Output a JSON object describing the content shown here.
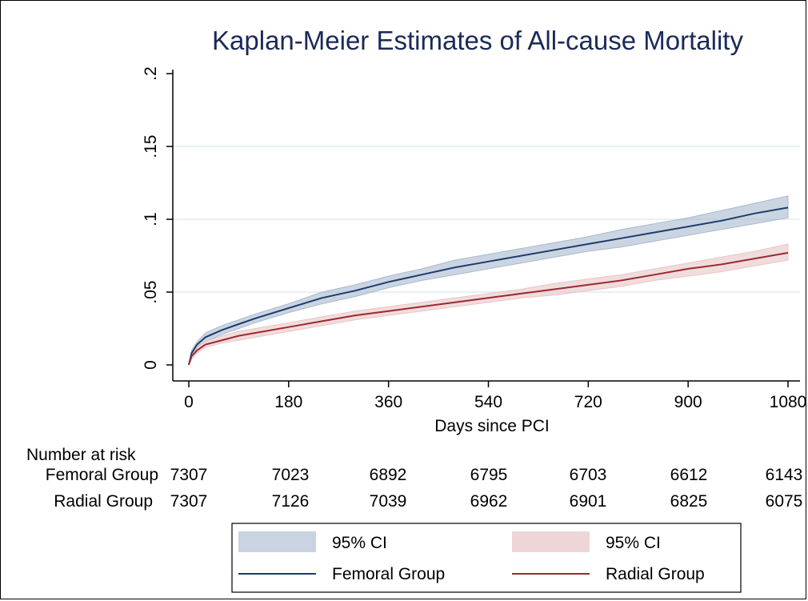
{
  "chart_data": {
    "type": "line",
    "title": "Kaplan-Meier Estimates of All-cause Mortality",
    "xlabel": "Days since PCI",
    "ylabel": "",
    "xlim": [
      0,
      1080
    ],
    "ylim": [
      0,
      0.2
    ],
    "x_ticks": [
      0,
      180,
      360,
      540,
      720,
      900,
      1080
    ],
    "x_tick_labels": [
      "0",
      "180",
      "360",
      "540",
      "720",
      "900",
      "1080"
    ],
    "y_ticks": [
      0,
      0.05,
      0.1,
      0.15,
      0.2
    ],
    "y_tick_labels": [
      "0",
      ".05",
      ".1",
      ".15",
      ".2"
    ],
    "grid": "horizontal",
    "series": [
      {
        "name": "Femoral Group",
        "color": "#1f3b6e",
        "ci_color": "#a9b9cf",
        "ci_label": "95% CI",
        "x": [
          0,
          5,
          15,
          30,
          60,
          90,
          120,
          180,
          240,
          300,
          360,
          420,
          480,
          540,
          600,
          660,
          720,
          780,
          840,
          900,
          960,
          1020,
          1080
        ],
        "y": [
          0.0,
          0.008,
          0.014,
          0.019,
          0.024,
          0.028,
          0.032,
          0.039,
          0.046,
          0.051,
          0.057,
          0.062,
          0.067,
          0.071,
          0.075,
          0.079,
          0.083,
          0.087,
          0.091,
          0.095,
          0.099,
          0.104,
          0.108
        ],
        "ci_lower": [
          0.0,
          0.006,
          0.012,
          0.016,
          0.021,
          0.025,
          0.029,
          0.036,
          0.042,
          0.047,
          0.053,
          0.058,
          0.062,
          0.066,
          0.07,
          0.074,
          0.078,
          0.081,
          0.085,
          0.089,
          0.093,
          0.097,
          0.101
        ],
        "ci_upper": [
          0.0,
          0.01,
          0.016,
          0.022,
          0.027,
          0.031,
          0.035,
          0.042,
          0.05,
          0.055,
          0.061,
          0.066,
          0.072,
          0.076,
          0.08,
          0.084,
          0.088,
          0.093,
          0.097,
          0.101,
          0.106,
          0.111,
          0.116
        ]
      },
      {
        "name": "Radial Group",
        "color": "#9b2a2f",
        "ci_color": "#e8c5c7",
        "ci_label": "95% CI",
        "x": [
          0,
          5,
          15,
          30,
          60,
          90,
          120,
          180,
          240,
          300,
          360,
          420,
          480,
          540,
          600,
          660,
          720,
          780,
          840,
          900,
          960,
          1020,
          1080
        ],
        "y": [
          0.0,
          0.006,
          0.01,
          0.014,
          0.017,
          0.02,
          0.022,
          0.026,
          0.03,
          0.034,
          0.037,
          0.04,
          0.043,
          0.046,
          0.049,
          0.052,
          0.055,
          0.058,
          0.062,
          0.066,
          0.069,
          0.073,
          0.077
        ],
        "ci_lower": [
          0.0,
          0.004,
          0.008,
          0.012,
          0.015,
          0.017,
          0.019,
          0.023,
          0.027,
          0.031,
          0.034,
          0.037,
          0.04,
          0.043,
          0.046,
          0.048,
          0.051,
          0.054,
          0.058,
          0.061,
          0.064,
          0.068,
          0.072
        ],
        "ci_upper": [
          0.0,
          0.008,
          0.012,
          0.016,
          0.02,
          0.023,
          0.025,
          0.029,
          0.033,
          0.037,
          0.04,
          0.043,
          0.046,
          0.049,
          0.052,
          0.056,
          0.059,
          0.062,
          0.066,
          0.07,
          0.074,
          0.078,
          0.083
        ]
      }
    ],
    "risk_table": {
      "heading": "Number at risk",
      "rows": [
        {
          "label": "Femoral Group",
          "values": [
            "7307",
            "7023",
            "6892",
            "6795",
            "6703",
            "6612",
            "6143"
          ]
        },
        {
          "label": "Radial Group",
          "values": [
            "7307",
            "7126",
            "7039",
            "6962",
            "6901",
            "6825",
            "6075"
          ]
        }
      ]
    },
    "legend": {
      "placement": "bottom",
      "entries": [
        {
          "label": "95% CI",
          "kind": "band",
          "color": "#c9d3e1"
        },
        {
          "label": "95% CI",
          "kind": "band",
          "color": "#eed6d8"
        },
        {
          "label": "Femoral Group",
          "kind": "line",
          "color": "#1f3b6e"
        },
        {
          "label": "Radial Group",
          "kind": "line",
          "color": "#9b2a2f"
        }
      ]
    }
  }
}
